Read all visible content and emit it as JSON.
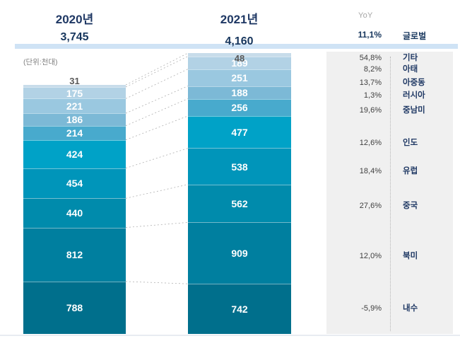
{
  "meta": {
    "unit_note": "(단위:천대)"
  },
  "header": {
    "year_left": "2020년",
    "year_right": "2021년",
    "yoy_label": "YoY",
    "total_left": "3,745",
    "total_right": "4,160",
    "global": {
      "yoy": "11,1%",
      "label": "글로벌"
    }
  },
  "chart_data": {
    "type": "bar",
    "subtype": "stacked-column-comparison",
    "title": "",
    "unit_note": "(단위:천대)",
    "categories": [
      "2020년",
      "2021년"
    ],
    "totals": {
      "y2020": 3745,
      "y2021": 4160
    },
    "global_yoy": "11,1%",
    "legend_position": "right",
    "rows_top_to_bottom": [
      {
        "label": "기타",
        "name": "other",
        "v2020": 31,
        "v2021": 48,
        "yoy": "54,8%",
        "color": "#c8dcea",
        "label_outside": true
      },
      {
        "label": "아태",
        "name": "asia-pacific",
        "v2020": 175,
        "v2021": 189,
        "yoy": "8,2%",
        "color": "#b2d2e5"
      },
      {
        "label": "아중동",
        "name": "africa-middle-east",
        "v2020": 221,
        "v2021": 251,
        "yoy": "13,7%",
        "color": "#9ac8e0"
      },
      {
        "label": "러시아",
        "name": "russia",
        "v2020": 186,
        "v2021": 188,
        "yoy": "1,3%",
        "color": "#7cb9d6"
      },
      {
        "label": "중남미",
        "name": "latin-america",
        "v2020": 214,
        "v2021": 256,
        "yoy": "19,6%",
        "color": "#48aacd"
      },
      {
        "label": "인도",
        "name": "india",
        "v2020": 424,
        "v2021": 477,
        "yoy": "12,6%",
        "color": "#00a2c7"
      },
      {
        "label": "유럽",
        "name": "europe",
        "v2020": 454,
        "v2021": 538,
        "yoy": "18,4%",
        "color": "#0095ba"
      },
      {
        "label": "중국",
        "name": "china",
        "v2020": 440,
        "v2021": 562,
        "yoy": "27,6%",
        "color": "#008bac"
      },
      {
        "label": "북미",
        "name": "north-america",
        "v2020": 812,
        "v2021": 909,
        "yoy": "12,0%",
        "color": "#007f9f"
      },
      {
        "label": "내수",
        "name": "domestic",
        "v2020": 788,
        "v2021": 742,
        "yoy": "-5,9%",
        "color": "#006f8c"
      }
    ]
  }
}
